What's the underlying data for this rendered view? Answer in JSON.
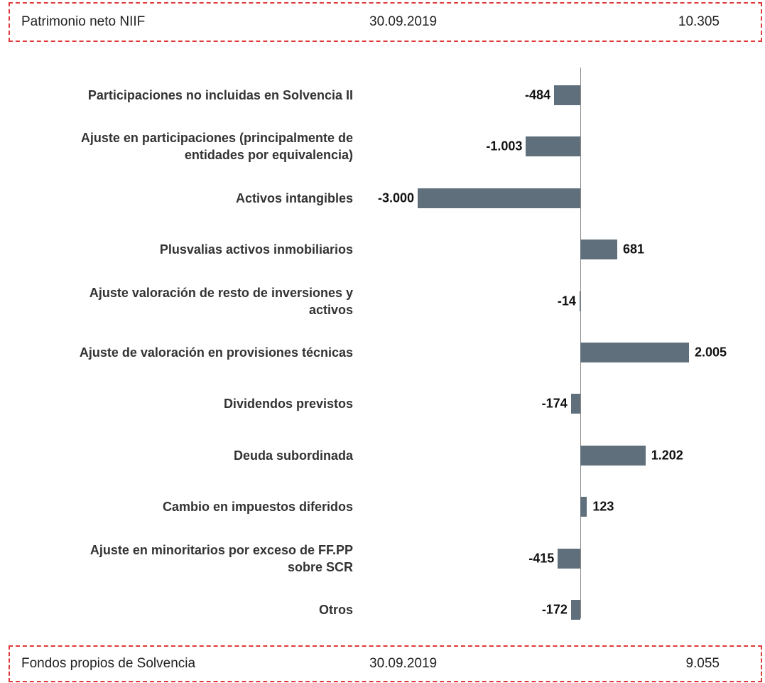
{
  "header": {
    "label": "Patrimonio neto NIIF",
    "date": "30.09.2019",
    "amount": "10.305"
  },
  "footer": {
    "label": "Fondos propios de Solvencia",
    "date": "30.09.2019",
    "amount": "9.055"
  },
  "chart_data": {
    "type": "hbar",
    "color": "#5f6f7b",
    "categories": [
      "Participaciones no incluidas en Solvencia II",
      "Ajuste en participaciones (principalmente de\nentidades por equivalencia)",
      "Activos intangibles",
      "Plusvalias activos inmobiliarios",
      "Ajuste valoración de resto de inversiones y\nactivos",
      "Ajuste de valoración en provisiones técnicas",
      "Dividendos previstos",
      "Deuda subordinada",
      "Cambio en impuestos diferidos",
      "Ajuste en minoritarios por exceso de FF.PP\nsobre SCR",
      "Otros"
    ],
    "values": [
      -484,
      -1003,
      -3000,
      681,
      -14,
      2005,
      -174,
      1202,
      123,
      -415,
      -172
    ],
    "value_labels": [
      "-484",
      "-1.003",
      "-3.000",
      "681",
      "-14",
      "2.005",
      "-174",
      "1.202",
      "123",
      "-415",
      "-172"
    ]
  }
}
